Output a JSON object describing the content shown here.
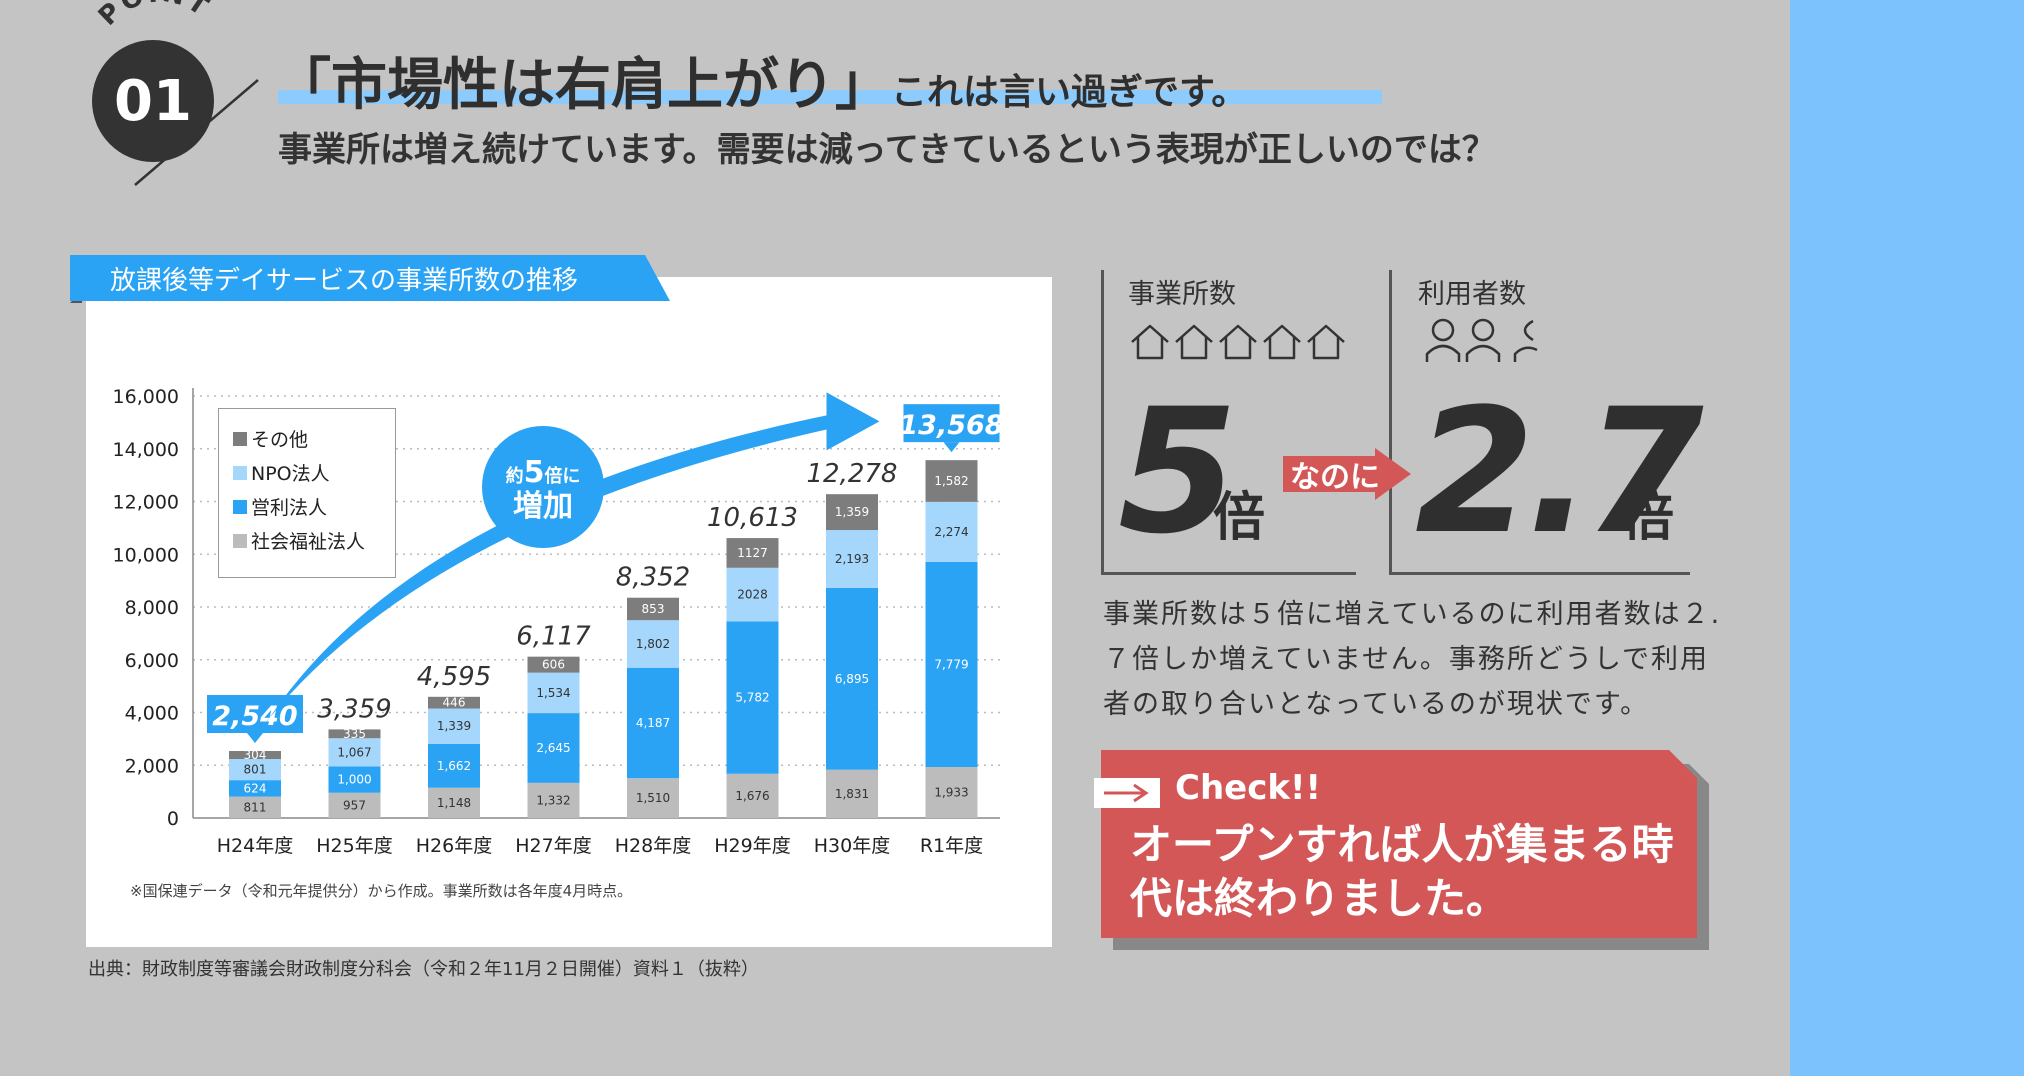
{
  "point": {
    "word": "POINT",
    "number": "01"
  },
  "headline": {
    "main": "「市場性は右肩上がり」",
    "tail": "これは言い過ぎです。",
    "sub": "事業所は増え続けています。需要は減ってきているという表現が正しいのでは？"
  },
  "chart_panel": {
    "title": "放課後等デイサービスの事業所数の推移",
    "note": "※国保連データ（令和元年提供分）から作成。事業所数は各年度4月時点。",
    "arrow_label_line1": "約",
    "arrow_label_num": "5",
    "arrow_label_line1b": "倍に",
    "arrow_label_line2": "増加"
  },
  "source": "出典：財政制度等審議会財政制度分科会（令和２年11月２日開催）資料１（抜粋）",
  "chart_data": {
    "type": "bar",
    "stacked": true,
    "categories": [
      "H24年度",
      "H25年度",
      "H26年度",
      "H27年度",
      "H28年度",
      "H29年度",
      "H30年度",
      "R1年度"
    ],
    "series": [
      {
        "name": "社会福祉法人",
        "color": "#bcbcbc",
        "values": [
          811,
          957,
          1148,
          1332,
          1510,
          1676,
          1831,
          1933
        ],
        "labels": [
          "811",
          "957",
          "1,148",
          "1,332",
          "1,510",
          "1,676",
          "1,831",
          "1,933"
        ]
      },
      {
        "name": "営利法人",
        "color": "#2aa3f5",
        "values": [
          624,
          1000,
          1662,
          2645,
          4187,
          5782,
          6895,
          7779
        ],
        "labels": [
          "624",
          "1,000",
          "1,662",
          "2,645",
          "4,187",
          "5,782",
          "6,895",
          "7,779"
        ]
      },
      {
        "name": "NPO法人",
        "color": "#a5d6fb",
        "values": [
          801,
          1067,
          1339,
          1534,
          1802,
          2028,
          2193,
          2274
        ],
        "labels": [
          "801",
          "1,067",
          "1,339",
          "1,534",
          "1,802",
          "2028",
          "2,193",
          "2,274"
        ]
      },
      {
        "name": "その他",
        "color": "#7d7d7d",
        "values": [
          304,
          335,
          446,
          606,
          853,
          1127,
          1359,
          1582
        ],
        "labels": [
          "304",
          "335",
          "446",
          "606",
          "853",
          "1127",
          "1,359",
          "1,582"
        ]
      }
    ],
    "totals": [
      "2,540",
      "3,359",
      "4,595",
      "6,117",
      "8,352",
      "10,613",
      "12,278",
      "13,568"
    ],
    "ylim": [
      0,
      16000
    ],
    "yticks": [
      "0",
      "2,000",
      "4,000",
      "6,000",
      "8,000",
      "10,000",
      "12,000",
      "14,000",
      "16,000"
    ],
    "grid": true,
    "legend_order": [
      "その他",
      "NPO法人",
      "営利法人",
      "社会福祉法人"
    ],
    "legend_position": "top-left",
    "highlight_first": "2,540",
    "highlight_last": "13,568"
  },
  "stats": {
    "offices_label": "事業所数",
    "offices_value": "5",
    "users_label": "利用者数",
    "users_value": "2.7",
    "unit": "倍",
    "connector": "なのに"
  },
  "paragraph": "事業所数は５倍に増えているのに利用者数は２.７倍しか増えていません。事務所どうしで利用者の取り合いとなっているのが現状です。",
  "check": {
    "title": "Check!!",
    "text": "オープンすれば人が集まる時代は終わりました。"
  },
  "colors": {
    "accent_blue": "#2aa3f5",
    "light_blue": "#8ccbfc",
    "red": "#d45758",
    "dark": "#333333"
  }
}
